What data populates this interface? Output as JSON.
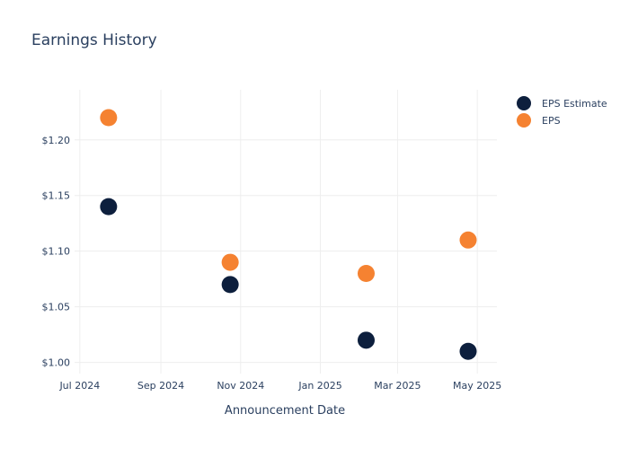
{
  "chart_data": {
    "type": "scatter",
    "title": "Earnings History",
    "xlabel": "Announcement Date",
    "ylabel": "",
    "x_ticks": [
      "2024-07-01",
      "2024-09-01",
      "2024-11-01",
      "2025-01-01",
      "2025-03-01",
      "2025-05-01"
    ],
    "x_tick_labels": [
      "Jul 2024",
      "Sep 2024",
      "Nov 2024",
      "Jan 2025",
      "Mar 2025",
      "May 2025"
    ],
    "xlim": [
      "2024-06-27",
      "2025-05-16"
    ],
    "y_ticks": [
      1.0,
      1.05,
      1.1,
      1.15,
      1.2
    ],
    "y_tick_labels": [
      "$1.00",
      "$1.05",
      "$1.10",
      "$1.15",
      "$1.20"
    ],
    "ylim": [
      0.99,
      1.245
    ],
    "grid": true,
    "legend_position": "top-right",
    "x": [
      "2024-07-23",
      "2024-10-24",
      "2025-02-05",
      "2025-04-24"
    ],
    "series": [
      {
        "name": "EPS Estimate",
        "color": "#0d1f3d",
        "values": [
          1.14,
          1.07,
          1.02,
          1.01
        ]
      },
      {
        "name": "EPS",
        "color": "#f58231",
        "values": [
          1.22,
          1.09,
          1.08,
          1.11
        ]
      }
    ]
  }
}
